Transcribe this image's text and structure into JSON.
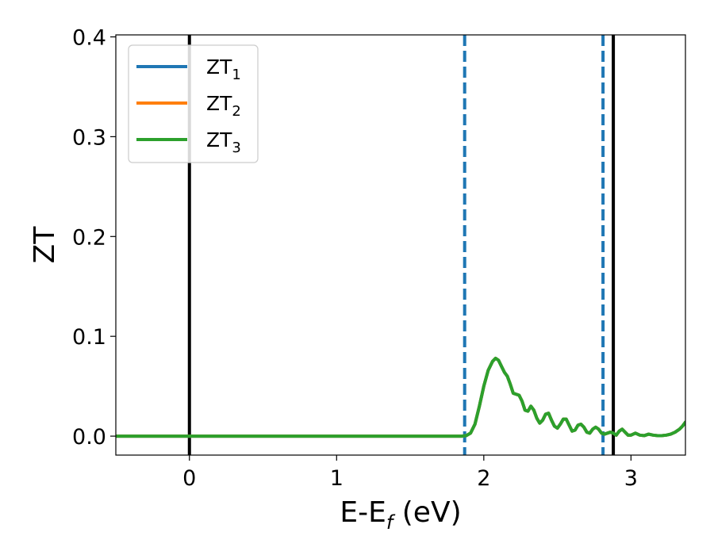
{
  "chart_data": {
    "type": "line",
    "xlabel": "E-E",
    "xlabel_sub": "f",
    "xlabel_unit": " (eV)",
    "ylabel": "ZT",
    "xlim": [
      -0.5,
      3.37
    ],
    "ylim": [
      -0.019,
      0.402
    ],
    "xticks": [
      0,
      1,
      2,
      3
    ],
    "xtick_labels": [
      "0",
      "1",
      "2",
      "3"
    ],
    "yticks": [
      0.0,
      0.1,
      0.2,
      0.3,
      0.4
    ],
    "ytick_labels": [
      "0.0",
      "0.1",
      "0.2",
      "0.3",
      "0.4"
    ],
    "grid": false,
    "legend_placement": "upper-left",
    "series": [
      {
        "name": "ZT",
        "name_sub": "1",
        "color": "#1f77b4",
        "x": [
          -0.5,
          1.85,
          1.88,
          1.91,
          1.94,
          1.97,
          2.0,
          2.03,
          2.06,
          2.08,
          2.1,
          2.12,
          2.14,
          2.16,
          2.18,
          2.2,
          2.22,
          2.24,
          2.26,
          2.28,
          2.3,
          2.32,
          2.34,
          2.36,
          2.38,
          2.4,
          2.42,
          2.44,
          2.46,
          2.48,
          2.5,
          2.52,
          2.54,
          2.56,
          2.58,
          2.6,
          2.62,
          2.64,
          2.66,
          2.68,
          2.7,
          2.72,
          2.74,
          2.76,
          2.78,
          2.8,
          2.82,
          2.84,
          2.86,
          2.88,
          2.9,
          2.92,
          2.94,
          2.96,
          2.98,
          3.0,
          3.03,
          3.06,
          3.09,
          3.12,
          3.15,
          3.18,
          3.21,
          3.24,
          3.27,
          3.3,
          3.33,
          3.35,
          3.37
        ],
        "y": [
          0.0,
          0.0,
          0.0005,
          0.003,
          0.012,
          0.03,
          0.05,
          0.066,
          0.075,
          0.078,
          0.076,
          0.07,
          0.064,
          0.06,
          0.052,
          0.043,
          0.042,
          0.041,
          0.035,
          0.026,
          0.025,
          0.03,
          0.026,
          0.018,
          0.013,
          0.016,
          0.022,
          0.023,
          0.016,
          0.01,
          0.008,
          0.012,
          0.017,
          0.017,
          0.011,
          0.005,
          0.006,
          0.011,
          0.012,
          0.009,
          0.004,
          0.003,
          0.007,
          0.009,
          0.007,
          0.003,
          0.002,
          0.003,
          0.004,
          0.003,
          0.001,
          0.005,
          0.007,
          0.004,
          0.001,
          0.001,
          0.003,
          0.001,
          0.0005,
          0.002,
          0.001,
          0.0005,
          0.0005,
          0.001,
          0.002,
          0.004,
          0.007,
          0.01,
          0.014
        ]
      },
      {
        "name": "ZT",
        "name_sub": "2",
        "color": "#ff7f0e",
        "x": [
          -0.5,
          1.85,
          1.88,
          1.91,
          1.94,
          1.97,
          2.0,
          2.03,
          2.06,
          2.08,
          2.1,
          2.12,
          2.14,
          2.16,
          2.18,
          2.2,
          2.22,
          2.24,
          2.26,
          2.28,
          2.3,
          2.32,
          2.34,
          2.36,
          2.38,
          2.4,
          2.42,
          2.44,
          2.46,
          2.48,
          2.5,
          2.52,
          2.54,
          2.56,
          2.58,
          2.6,
          2.62,
          2.64,
          2.66,
          2.68,
          2.7,
          2.72,
          2.74,
          2.76,
          2.78,
          2.8,
          2.82,
          2.84,
          2.86,
          2.88,
          2.9,
          2.92,
          2.94,
          2.96,
          2.98,
          3.0,
          3.03,
          3.06,
          3.09,
          3.12,
          3.15,
          3.18,
          3.21,
          3.24,
          3.27,
          3.3,
          3.33,
          3.35,
          3.37
        ],
        "y": [
          0.0,
          0.0,
          0.0005,
          0.003,
          0.012,
          0.03,
          0.05,
          0.066,
          0.075,
          0.078,
          0.076,
          0.07,
          0.064,
          0.06,
          0.052,
          0.043,
          0.042,
          0.041,
          0.035,
          0.026,
          0.025,
          0.03,
          0.026,
          0.018,
          0.013,
          0.016,
          0.022,
          0.023,
          0.016,
          0.01,
          0.008,
          0.012,
          0.017,
          0.017,
          0.011,
          0.005,
          0.006,
          0.011,
          0.012,
          0.009,
          0.004,
          0.003,
          0.007,
          0.009,
          0.007,
          0.003,
          0.002,
          0.003,
          0.004,
          0.003,
          0.001,
          0.005,
          0.007,
          0.004,
          0.001,
          0.001,
          0.003,
          0.001,
          0.0005,
          0.002,
          0.001,
          0.0005,
          0.0005,
          0.001,
          0.002,
          0.004,
          0.007,
          0.01,
          0.014
        ]
      },
      {
        "name": "ZT",
        "name_sub": "3",
        "color": "#2ca02c",
        "x": [
          -0.5,
          1.85,
          1.88,
          1.91,
          1.94,
          1.97,
          2.0,
          2.03,
          2.06,
          2.08,
          2.1,
          2.12,
          2.14,
          2.16,
          2.18,
          2.2,
          2.22,
          2.24,
          2.26,
          2.28,
          2.3,
          2.32,
          2.34,
          2.36,
          2.38,
          2.4,
          2.42,
          2.44,
          2.46,
          2.48,
          2.5,
          2.52,
          2.54,
          2.56,
          2.58,
          2.6,
          2.62,
          2.64,
          2.66,
          2.68,
          2.7,
          2.72,
          2.74,
          2.76,
          2.78,
          2.8,
          2.82,
          2.84,
          2.86,
          2.88,
          2.9,
          2.92,
          2.94,
          2.96,
          2.98,
          3.0,
          3.03,
          3.06,
          3.09,
          3.12,
          3.15,
          3.18,
          3.21,
          3.24,
          3.27,
          3.3,
          3.33,
          3.35,
          3.37
        ],
        "y": [
          0.0,
          0.0,
          0.0005,
          0.003,
          0.012,
          0.03,
          0.05,
          0.066,
          0.075,
          0.078,
          0.076,
          0.07,
          0.064,
          0.06,
          0.052,
          0.043,
          0.042,
          0.041,
          0.035,
          0.026,
          0.025,
          0.03,
          0.026,
          0.018,
          0.013,
          0.016,
          0.022,
          0.023,
          0.016,
          0.01,
          0.008,
          0.012,
          0.017,
          0.017,
          0.011,
          0.005,
          0.006,
          0.011,
          0.012,
          0.009,
          0.004,
          0.003,
          0.007,
          0.009,
          0.007,
          0.003,
          0.002,
          0.003,
          0.004,
          0.003,
          0.001,
          0.005,
          0.007,
          0.004,
          0.001,
          0.001,
          0.003,
          0.001,
          0.0005,
          0.002,
          0.001,
          0.0005,
          0.0005,
          0.001,
          0.002,
          0.004,
          0.007,
          0.01,
          0.014
        ]
      }
    ],
    "reference_lines": [
      {
        "x": 0.0,
        "style": "solid",
        "color": "#000000"
      },
      {
        "x": 2.88,
        "style": "solid",
        "color": "#000000"
      },
      {
        "x": 1.87,
        "style": "dashed",
        "color": "#1f77b4"
      },
      {
        "x": 2.81,
        "style": "dashed",
        "color": "#1f77b4"
      }
    ]
  }
}
